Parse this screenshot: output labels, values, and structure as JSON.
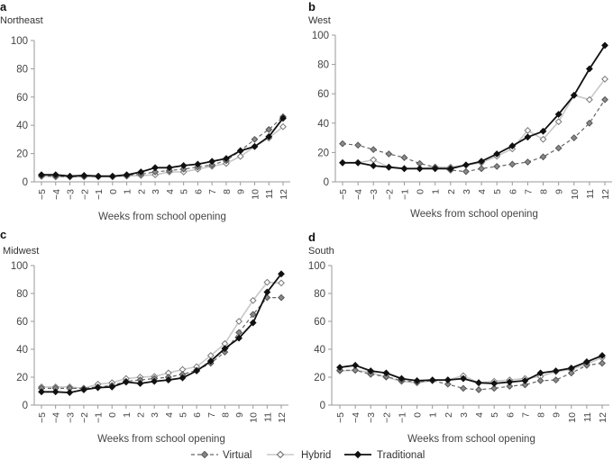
{
  "legend": {
    "items": [
      {
        "key": "virtual",
        "label": "Virtual"
      },
      {
        "key": "hybrid",
        "label": "Hybrid"
      },
      {
        "key": "traditional",
        "label": "Traditional"
      }
    ]
  },
  "styles": {
    "virtual": {
      "color": "#666666",
      "dash": "4,3",
      "marker": "diamond-filled-gray"
    },
    "hybrid": {
      "color": "#c8c8c8",
      "dash": "",
      "marker": "diamond-open"
    },
    "traditional": {
      "color": "#111111",
      "dash": "",
      "marker": "diamond-filled-black"
    }
  },
  "chart_data": [
    {
      "type": "line",
      "panel": "a",
      "title": "Northeast",
      "xlabel": "Weeks from school opening",
      "ylabel": "",
      "ylim": [
        0,
        100
      ],
      "yticks": [
        "0",
        "20",
        "40",
        "60",
        "80",
        "100"
      ],
      "x": [
        -5,
        -4,
        -3,
        -2,
        -1,
        0,
        1,
        2,
        3,
        4,
        5,
        6,
        7,
        8,
        9,
        10,
        11,
        12
      ],
      "xtick_labels": [
        "−5",
        "−4",
        "−3",
        "−2",
        "−1",
        "0",
        "1",
        "2",
        "3",
        "4",
        "5",
        "6",
        "7",
        "8",
        "9",
        "10",
        "11",
        "12"
      ],
      "series": [
        {
          "name": "Virtual",
          "key": "virtual",
          "values": [
            4,
            4,
            3.5,
            4,
            4,
            4,
            4.5,
            5.5,
            7,
            8,
            9,
            10.5,
            12,
            15,
            22,
            30,
            37,
            46
          ]
        },
        {
          "name": "Hybrid",
          "key": "hybrid",
          "values": [
            4,
            3.5,
            3.5,
            3.5,
            3.5,
            3.5,
            4,
            4.5,
            5,
            7,
            7,
            9,
            11,
            13,
            18,
            25,
            31,
            39
          ]
        },
        {
          "name": "Traditional",
          "key": "traditional",
          "values": [
            5,
            5,
            4,
            4.5,
            4,
            4,
            5,
            7,
            10,
            10,
            11.5,
            12.5,
            14.5,
            16.5,
            22,
            25,
            32,
            45
          ]
        }
      ]
    },
    {
      "type": "line",
      "panel": "b",
      "title": "West",
      "xlabel": "Weeks from school opening",
      "ylabel": "",
      "ylim": [
        0,
        100
      ],
      "yticks": [
        "0",
        "20",
        "40",
        "60",
        "80",
        "100"
      ],
      "x": [
        -5,
        -4,
        -3,
        -2,
        -1,
        0,
        1,
        2,
        3,
        4,
        5,
        6,
        7,
        8,
        9,
        10,
        11,
        12
      ],
      "xtick_labels": [
        "−5",
        "−4",
        "−3",
        "−2",
        "−1",
        "0",
        "1",
        "2",
        "3",
        "4",
        "5",
        "6",
        "7",
        "8",
        "9",
        "10",
        "11",
        "12"
      ],
      "series": [
        {
          "name": "Virtual",
          "key": "virtual",
          "values": [
            26,
            25,
            22,
            19,
            16.5,
            12.5,
            10,
            8,
            7,
            9,
            10.5,
            12,
            13.5,
            17,
            23,
            30,
            40,
            56
          ]
        },
        {
          "name": "Hybrid",
          "key": "hybrid",
          "values": [
            13,
            13,
            15,
            10,
            9,
            9,
            10,
            10,
            11.5,
            13,
            17.5,
            22.5,
            35,
            29,
            41,
            59,
            56,
            70
          ]
        },
        {
          "name": "Traditional",
          "key": "traditional",
          "values": [
            13,
            13,
            11,
            10,
            9,
            9,
            9,
            9,
            11.5,
            14,
            19,
            24.5,
            30.5,
            34.5,
            46,
            59,
            77,
            93
          ]
        }
      ]
    },
    {
      "type": "line",
      "panel": "c",
      "title": "Midwest",
      "xlabel": "Weeks from school opening",
      "ylabel": "",
      "ylim": [
        0,
        100
      ],
      "yticks": [
        "0",
        "20",
        "40",
        "60",
        "80",
        "100"
      ],
      "x": [
        -5,
        -4,
        -3,
        -2,
        -1,
        0,
        1,
        2,
        3,
        4,
        5,
        6,
        7,
        8,
        9,
        10,
        11,
        12
      ],
      "xtick_labels": [
        "−5",
        "−4",
        "−3",
        "−2",
        "−1",
        "0",
        "1",
        "2",
        "3",
        "4",
        "5",
        "6",
        "7",
        "8",
        "9",
        "10",
        "11",
        "12"
      ],
      "series": [
        {
          "name": "Virtual",
          "key": "virtual",
          "values": [
            12,
            12,
            12,
            12,
            13,
            14,
            17,
            18,
            19,
            20,
            22,
            25,
            30,
            38,
            52,
            65,
            77,
            77
          ]
        },
        {
          "name": "Hybrid",
          "key": "hybrid",
          "values": [
            13,
            13,
            13,
            12,
            15,
            16,
            19,
            20,
            20.5,
            23,
            25.5,
            27.5,
            35.5,
            44,
            60,
            75,
            88,
            87.5
          ]
        },
        {
          "name": "Traditional",
          "key": "traditional",
          "values": [
            9.5,
            9.5,
            9,
            11,
            12.5,
            13,
            16.5,
            15.5,
            17,
            18,
            19.5,
            24.5,
            31.5,
            40.5,
            48,
            59,
            81,
            94
          ]
        }
      ]
    },
    {
      "type": "line",
      "panel": "d",
      "title": "South",
      "xlabel": "Weeks from school opening",
      "ylabel": "",
      "ylim": [
        0,
        100
      ],
      "yticks": [
        "0",
        "20",
        "40",
        "60",
        "80",
        "100"
      ],
      "x": [
        -5,
        -4,
        -3,
        -2,
        -1,
        0,
        1,
        2,
        3,
        4,
        5,
        6,
        7,
        8,
        9,
        10,
        11,
        12
      ],
      "xtick_labels": [
        "−5",
        "−4",
        "−3",
        "−2",
        "−1",
        "0",
        "1",
        "2",
        "3",
        "4",
        "5",
        "6",
        "7",
        "8",
        "9",
        "10",
        "11",
        "12"
      ],
      "series": [
        {
          "name": "Virtual",
          "key": "virtual",
          "values": [
            25,
            25,
            22,
            20.5,
            17.5,
            16.5,
            17.5,
            15,
            12,
            11,
            12,
            13.5,
            14.5,
            17.5,
            18,
            23,
            28.5,
            30
          ]
        },
        {
          "name": "Hybrid",
          "key": "hybrid",
          "values": [
            24.5,
            25,
            23.5,
            20,
            17,
            16,
            17.5,
            18,
            21,
            16,
            17,
            18,
            19,
            20.5,
            24,
            25.5,
            29.5,
            34
          ]
        },
        {
          "name": "Traditional",
          "key": "traditional",
          "values": [
            27,
            28.5,
            24.5,
            23,
            19,
            17.5,
            18,
            18,
            19,
            16,
            15.5,
            16.5,
            17.5,
            23,
            24.5,
            26.5,
            31,
            35.5
          ]
        }
      ]
    }
  ]
}
